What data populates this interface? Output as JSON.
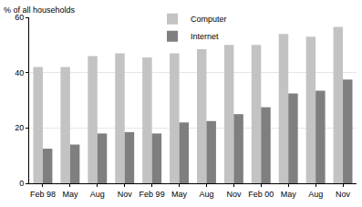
{
  "chart_data": {
    "type": "bar",
    "y_label": "% of all households",
    "categories": [
      "Feb 98",
      "May",
      "Aug",
      "Nov",
      "Feb 99",
      "May",
      "Aug",
      "Nov",
      "Feb 00",
      "May",
      "Aug",
      "Nov"
    ],
    "series": [
      {
        "name": "Computer",
        "color": "#c3c3c3",
        "values": [
          42,
          42,
          46,
          47,
          45.5,
          47,
          48.5,
          50,
          50,
          54,
          53,
          56.5
        ]
      },
      {
        "name": "Internet",
        "color": "#7f7f7f",
        "values": [
          12.5,
          14,
          18,
          18.5,
          18,
          22,
          22.5,
          25,
          27.5,
          32.5,
          33.5,
          37.5
        ]
      }
    ],
    "ylim": [
      0,
      60
    ],
    "yticks": [
      0,
      20,
      40,
      60
    ],
    "grid": true,
    "legend": "top"
  }
}
